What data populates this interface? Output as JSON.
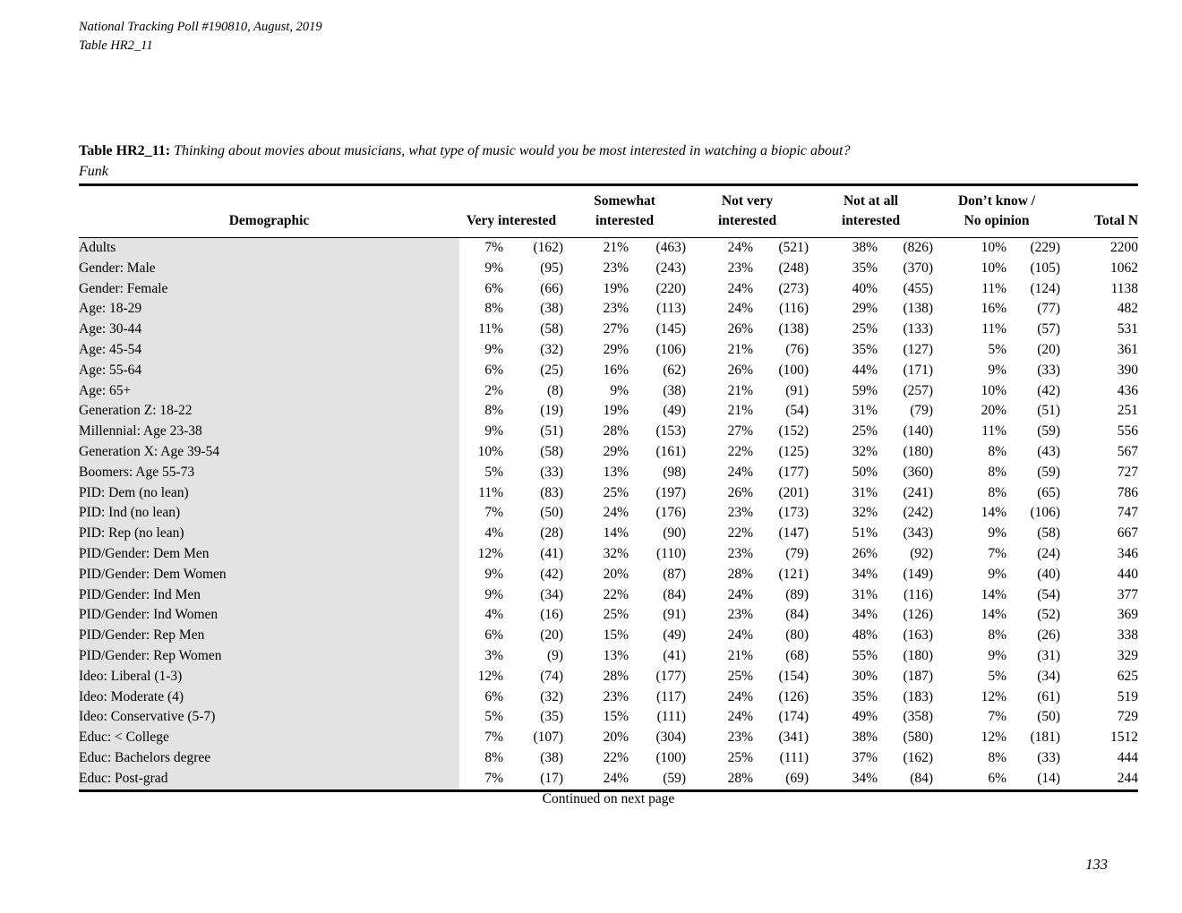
{
  "page": {
    "header_line1": "National Tracking Poll #190810, August, 2019",
    "header_line2": "Table HR2_11",
    "footer_note": "Continued on next page",
    "page_number": "133"
  },
  "title": {
    "label": "Table HR2_11:",
    "question": "Thinking about movies about musicians, what type of music would you be most interested in watching a biopic about?",
    "subject": "Funk"
  },
  "colors": {
    "row_shade": "#e3e3e3",
    "rule": "#000000"
  },
  "table": {
    "demographic_header": "Demographic",
    "group_headers": [
      "Very interested",
      "Somewhat\ninterested",
      "Not very\ninterested",
      "Not at all\ninterested",
      "Don’t know /\nNo opinion",
      "Total N"
    ],
    "rows": [
      [
        "Adults",
        "7%",
        "(162)",
        "21%",
        "(463)",
        "24%",
        "(521)",
        "38%",
        "(826)",
        "10%",
        "(229)",
        "2200"
      ],
      [
        "Gender: Male",
        "9%",
        "(95)",
        "23%",
        "(243)",
        "23%",
        "(248)",
        "35%",
        "(370)",
        "10%",
        "(105)",
        "1062"
      ],
      [
        "Gender: Female",
        "6%",
        "(66)",
        "19%",
        "(220)",
        "24%",
        "(273)",
        "40%",
        "(455)",
        "11%",
        "(124)",
        "1138"
      ],
      [
        "Age: 18-29",
        "8%",
        "(38)",
        "23%",
        "(113)",
        "24%",
        "(116)",
        "29%",
        "(138)",
        "16%",
        "(77)",
        "482"
      ],
      [
        "Age: 30-44",
        "11%",
        "(58)",
        "27%",
        "(145)",
        "26%",
        "(138)",
        "25%",
        "(133)",
        "11%",
        "(57)",
        "531"
      ],
      [
        "Age: 45-54",
        "9%",
        "(32)",
        "29%",
        "(106)",
        "21%",
        "(76)",
        "35%",
        "(127)",
        "5%",
        "(20)",
        "361"
      ],
      [
        "Age: 55-64",
        "6%",
        "(25)",
        "16%",
        "(62)",
        "26%",
        "(100)",
        "44%",
        "(171)",
        "9%",
        "(33)",
        "390"
      ],
      [
        "Age: 65+",
        "2%",
        "(8)",
        "9%",
        "(38)",
        "21%",
        "(91)",
        "59%",
        "(257)",
        "10%",
        "(42)",
        "436"
      ],
      [
        "Generation Z: 18-22",
        "8%",
        "(19)",
        "19%",
        "(49)",
        "21%",
        "(54)",
        "31%",
        "(79)",
        "20%",
        "(51)",
        "251"
      ],
      [
        "Millennial: Age 23-38",
        "9%",
        "(51)",
        "28%",
        "(153)",
        "27%",
        "(152)",
        "25%",
        "(140)",
        "11%",
        "(59)",
        "556"
      ],
      [
        "Generation X: Age 39-54",
        "10%",
        "(58)",
        "29%",
        "(161)",
        "22%",
        "(125)",
        "32%",
        "(180)",
        "8%",
        "(43)",
        "567"
      ],
      [
        "Boomers: Age 55-73",
        "5%",
        "(33)",
        "13%",
        "(98)",
        "24%",
        "(177)",
        "50%",
        "(360)",
        "8%",
        "(59)",
        "727"
      ],
      [
        "PID: Dem (no lean)",
        "11%",
        "(83)",
        "25%",
        "(197)",
        "26%",
        "(201)",
        "31%",
        "(241)",
        "8%",
        "(65)",
        "786"
      ],
      [
        "PID: Ind (no lean)",
        "7%",
        "(50)",
        "24%",
        "(176)",
        "23%",
        "(173)",
        "32%",
        "(242)",
        "14%",
        "(106)",
        "747"
      ],
      [
        "PID: Rep (no lean)",
        "4%",
        "(28)",
        "14%",
        "(90)",
        "22%",
        "(147)",
        "51%",
        "(343)",
        "9%",
        "(58)",
        "667"
      ],
      [
        "PID/Gender: Dem Men",
        "12%",
        "(41)",
        "32%",
        "(110)",
        "23%",
        "(79)",
        "26%",
        "(92)",
        "7%",
        "(24)",
        "346"
      ],
      [
        "PID/Gender: Dem Women",
        "9%",
        "(42)",
        "20%",
        "(87)",
        "28%",
        "(121)",
        "34%",
        "(149)",
        "9%",
        "(40)",
        "440"
      ],
      [
        "PID/Gender: Ind Men",
        "9%",
        "(34)",
        "22%",
        "(84)",
        "24%",
        "(89)",
        "31%",
        "(116)",
        "14%",
        "(54)",
        "377"
      ],
      [
        "PID/Gender: Ind Women",
        "4%",
        "(16)",
        "25%",
        "(91)",
        "23%",
        "(84)",
        "34%",
        "(126)",
        "14%",
        "(52)",
        "369"
      ],
      [
        "PID/Gender: Rep Men",
        "6%",
        "(20)",
        "15%",
        "(49)",
        "24%",
        "(80)",
        "48%",
        "(163)",
        "8%",
        "(26)",
        "338"
      ],
      [
        "PID/Gender: Rep Women",
        "3%",
        "(9)",
        "13%",
        "(41)",
        "21%",
        "(68)",
        "55%",
        "(180)",
        "9%",
        "(31)",
        "329"
      ],
      [
        "Ideo: Liberal (1-3)",
        "12%",
        "(74)",
        "28%",
        "(177)",
        "25%",
        "(154)",
        "30%",
        "(187)",
        "5%",
        "(34)",
        "625"
      ],
      [
        "Ideo: Moderate (4)",
        "6%",
        "(32)",
        "23%",
        "(117)",
        "24%",
        "(126)",
        "35%",
        "(183)",
        "12%",
        "(61)",
        "519"
      ],
      [
        "Ideo: Conservative (5-7)",
        "5%",
        "(35)",
        "15%",
        "(111)",
        "24%",
        "(174)",
        "49%",
        "(358)",
        "7%",
        "(50)",
        "729"
      ],
      [
        "Educ: < College",
        "7%",
        "(107)",
        "20%",
        "(304)",
        "23%",
        "(341)",
        "38%",
        "(580)",
        "12%",
        "(181)",
        "1512"
      ],
      [
        "Educ: Bachelors degree",
        "8%",
        "(38)",
        "22%",
        "(100)",
        "25%",
        "(111)",
        "37%",
        "(162)",
        "8%",
        "(33)",
        "444"
      ],
      [
        "Educ: Post-grad",
        "7%",
        "(17)",
        "24%",
        "(59)",
        "28%",
        "(69)",
        "34%",
        "(84)",
        "6%",
        "(14)",
        "244"
      ]
    ]
  }
}
